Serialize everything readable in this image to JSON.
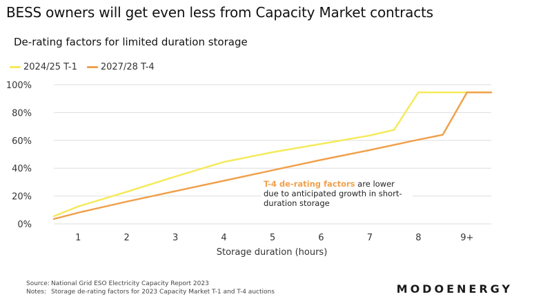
{
  "header": {
    "title": "BESS owners will get even less from Capacity Market contracts",
    "subtitle": "De-rating factors for limited duration storage"
  },
  "colors": {
    "series_1": "#f5ea5a",
    "series_2": "#f0a04b",
    "grid": "#dedede",
    "axis_text": "#333333"
  },
  "annotation": {
    "highlight": "T-4 de-rating factors",
    "text": " are lower due to anticipated growth in short-duration storage"
  },
  "footer": {
    "source_label": "Source:",
    "source_text": "National Grid ESO Electricity Capacity Report 2023",
    "notes_label": "Notes:",
    "notes_text": "Storage de-rating factors for 2023 Capacity Market T-1 and T-4 auctions"
  },
  "brand": "MODOENERGY",
  "chart_data": {
    "type": "line",
    "title": "De-rating factors for limited duration storage",
    "xlabel": "Storage duration (hours)",
    "ylabel": "",
    "x_ticks": [
      "1",
      "2",
      "3",
      "4",
      "5",
      "6",
      "7",
      "8",
      "9+"
    ],
    "y_ticks": [
      "0%",
      "20%",
      "40%",
      "60%",
      "80%",
      "100%"
    ],
    "xlim": [
      0.5,
      9.5
    ],
    "ylim": [
      0,
      100
    ],
    "grid": true,
    "legend_position": "top-left",
    "series": [
      {
        "name": "2024/25 T-1",
        "x": [
          0.5,
          1,
          2,
          3,
          4,
          5,
          6,
          7,
          7.5,
          8,
          8.5,
          9,
          9.5
        ],
        "y": [
          5.5,
          12.5,
          23,
          34,
          44.5,
          51.5,
          57.5,
          63.5,
          67.5,
          94.5,
          94.5,
          94.5,
          94.5
        ]
      },
      {
        "name": "2027/28 T-4",
        "x": [
          0.5,
          1,
          2,
          3,
          4,
          5,
          6,
          7,
          8,
          8.5,
          9,
          9.5
        ],
        "y": [
          3.5,
          8,
          16,
          23.5,
          31,
          38.5,
          46,
          53,
          60.5,
          64,
          94.5,
          94.5
        ]
      }
    ]
  }
}
